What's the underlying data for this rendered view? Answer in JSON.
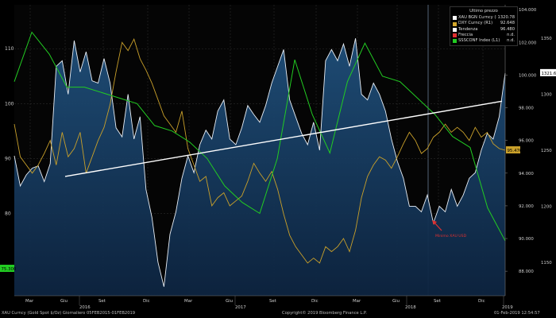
{
  "chart_data": {
    "type": "line",
    "legend_title": "Ultimo prezzo",
    "legend": [
      {
        "name": "XAU BGN Curncy  (R2)",
        "value": "1320.78",
        "color": "#ffffff"
      },
      {
        "name": "DXY Curncy  (R1)",
        "value": "92.648",
        "color": "#d4a72c"
      },
      {
        "name": "Tendenza",
        "value": "96.480",
        "color": "#ffffff"
      },
      {
        "name": "Freccia",
        "value": "n.d.",
        "color": "#e03030"
      },
      {
        "name": "SSSCONF Index  (L1)",
        "value": "n.d.",
        "color": "#22cc22"
      }
    ],
    "x_tick_labels": [
      "Mar",
      "Giu",
      "Set",
      "Dic",
      "Mar",
      "Giu",
      "Set",
      "Dic",
      "Mar",
      "Giu",
      "Set",
      "Dic"
    ],
    "x_year_labels": [
      "2016",
      "2017",
      "2018",
      "2019"
    ],
    "left_axis": {
      "ticks": [
        80,
        90,
        100,
        110
      ],
      "range": [
        65,
        118
      ]
    },
    "right1_axis": {
      "ticks": [
        "88.000",
        "90.000",
        "92.000",
        "94.000",
        "96.000",
        "98.000",
        "100.000",
        "102.000",
        "104.000"
      ],
      "range": [
        86.5,
        104.3
      ]
    },
    "right2_axis": {
      "ticks": [
        1150,
        1200,
        1250,
        1300,
        1350
      ],
      "range": [
        1120,
        1380
      ]
    },
    "value_tags": {
      "xau": "1321.65",
      "dxy": "95.476",
      "sentiment": "75.300"
    },
    "annotation": "Minimo XAU USD",
    "series": [
      {
        "name": "XAU BGN Curncy",
        "axis": "R2",
        "values": [
          1245,
          1218,
          1228,
          1234,
          1236,
          1222,
          1238,
          1325,
          1330,
          1300,
          1348,
          1320,
          1338,
          1312,
          1310,
          1332,
          1310,
          1270,
          1262,
          1300,
          1260,
          1280,
          1215,
          1190,
          1150,
          1128,
          1175,
          1195,
          1225,
          1245,
          1230,
          1255,
          1268,
          1260,
          1285,
          1295,
          1260,
          1255,
          1270,
          1290,
          1282,
          1275,
          1290,
          1310,
          1325,
          1340,
          1295,
          1280,
          1265,
          1255,
          1275,
          1250,
          1330,
          1340,
          1330,
          1345,
          1325,
          1350,
          1300,
          1295,
          1310,
          1300,
          1285,
          1260,
          1240,
          1225,
          1200,
          1200,
          1195,
          1210,
          1185,
          1200,
          1195,
          1215,
          1200,
          1210,
          1225,
          1230,
          1250,
          1265,
          1260,
          1280,
          1319
        ]
      },
      {
        "name": "DXY Curncy",
        "axis": "R1",
        "values": [
          97.0,
          95.0,
          94.5,
          94.0,
          94.5,
          95.2,
          96.0,
          94.5,
          96.5,
          95.0,
          95.5,
          96.5,
          94.0,
          95.0,
          96.0,
          96.8,
          98.2,
          100.2,
          102.0,
          101.5,
          102.2,
          101.0,
          100.3,
          99.5,
          98.5,
          97.5,
          97.0,
          96.5,
          97.8,
          95.5,
          94.5,
          93.5,
          93.8,
          92.0,
          92.5,
          92.8,
          92.0,
          92.3,
          92.6,
          93.5,
          94.6,
          94.0,
          93.5,
          94.1,
          93.0,
          91.5,
          90.2,
          89.5,
          89.0,
          88.5,
          88.8,
          88.5,
          89.5,
          89.2,
          89.5,
          90.0,
          89.2,
          90.5,
          92.5,
          93.8,
          94.5,
          95.0,
          94.8,
          94.3,
          95.0,
          95.8,
          96.5,
          96.0,
          95.2,
          95.5,
          96.2,
          96.5,
          97.0,
          96.5,
          96.8,
          96.5,
          96.0,
          96.8,
          96.2,
          96.5,
          95.8,
          95.5,
          95.4
        ]
      },
      {
        "name": "Tendenza",
        "axis": "R1",
        "values": [
          93.8,
          98.4
        ]
      },
      {
        "name": "SSSCONF Index",
        "axis": "L1",
        "values": [
          104,
          113,
          109,
          103,
          103,
          102,
          101,
          100,
          96,
          95,
          93,
          90,
          85,
          82,
          80,
          90,
          108,
          98,
          91,
          104,
          111,
          105,
          104,
          101,
          98,
          94,
          92,
          81,
          75
        ]
      }
    ]
  },
  "footer": {
    "left": "XAU Curncy (Gold Spot  $/Oz)  Giornaliero 05FEB2015-01FEB2019",
    "center": "Copyright© 2019 Bloomberg Finance L.P.",
    "right": "01-Feb-2019 12:54:57"
  }
}
